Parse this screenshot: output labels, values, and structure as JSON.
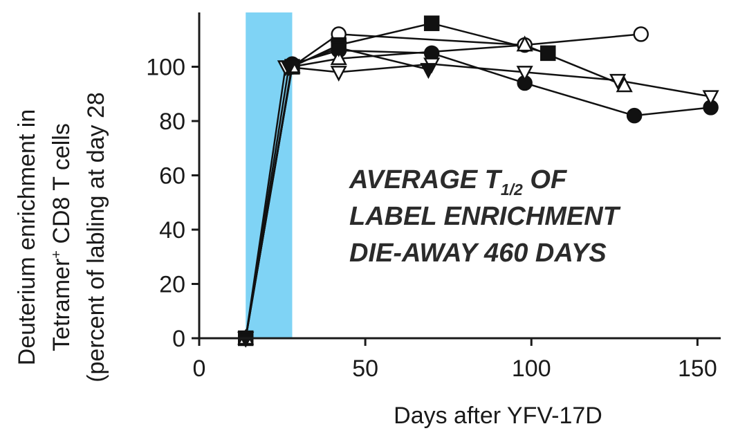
{
  "chart_data": {
    "type": "line",
    "title": "",
    "xlabel": "Days after YFV-17D",
    "ylabel_lines": [
      "Deuterium enrichment in",
      "Tetramer",
      "+",
      " CD8 T cells",
      "(percent of labling at day 28"
    ],
    "xlim": [
      0,
      157
    ],
    "ylim": [
      0,
      120
    ],
    "xticks": [
      0,
      50,
      100,
      150
    ],
    "yticks": [
      0,
      20,
      40,
      60,
      80,
      100
    ],
    "grid": false,
    "shaded_region": {
      "x": [
        14,
        28
      ],
      "color": "#7fd3f5"
    },
    "annotation": {
      "line1_prefix": "AVERAGE T",
      "line1_sub": "1/2",
      "line1_suffix": " OF",
      "line2": "LABEL ENRICHMENT",
      "line3": "DIE-AWAY 460 DAYS"
    },
    "series": [
      {
        "marker": "filled-circle",
        "x": [
          14,
          28,
          42,
          70,
          98,
          131,
          154
        ],
        "y": [
          0,
          101,
          106,
          105,
          94,
          82,
          85
        ]
      },
      {
        "marker": "open-circle",
        "x": [
          14,
          28,
          42,
          98,
          133
        ],
        "y": [
          0,
          100,
          112,
          108,
          112
        ]
      },
      {
        "marker": "filled-square",
        "x": [
          14,
          28,
          42,
          70,
          105
        ],
        "y": [
          0,
          100,
          108,
          116,
          105
        ]
      },
      {
        "marker": "open-triangle-up",
        "x": [
          14,
          28,
          42,
          98,
          128
        ],
        "y": [
          0,
          100,
          103,
          108,
          93
        ]
      },
      {
        "marker": "open-triangle-down",
        "x": [
          14,
          26,
          42,
          70,
          98,
          126,
          154
        ],
        "y": [
          0,
          100,
          98,
          101,
          98,
          95,
          89
        ]
      },
      {
        "marker": "filled-triangle-down",
        "x": [
          14,
          27,
          42,
          69
        ],
        "y": [
          0,
          100,
          107,
          99
        ]
      }
    ]
  }
}
